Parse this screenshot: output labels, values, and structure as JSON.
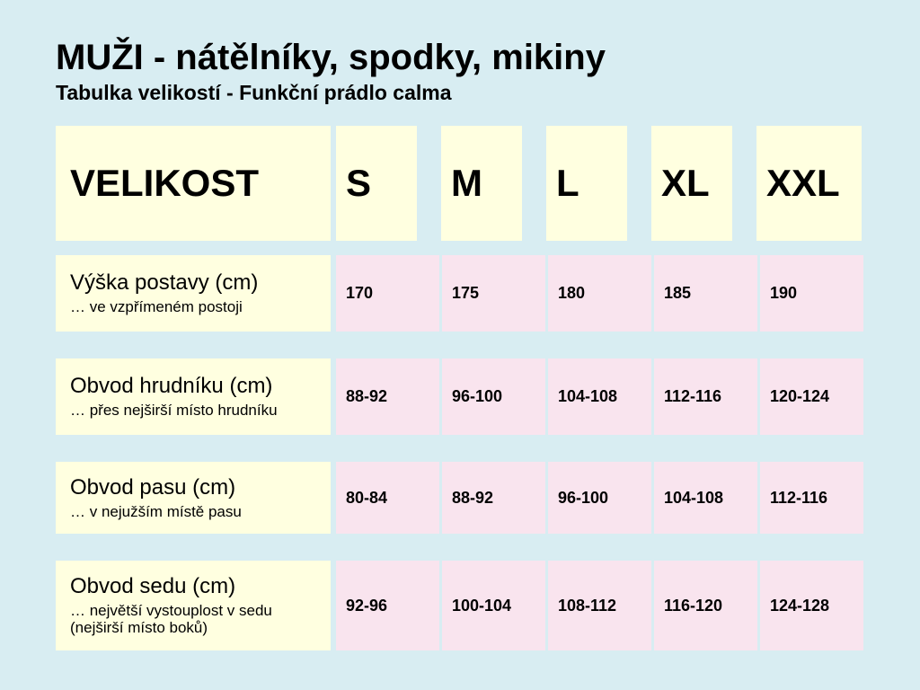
{
  "page": {
    "title": "MUŽI - nátělníky, spodky, mikiny",
    "subtitle": "Tabulka velikostí - Funkční prádlo calma"
  },
  "table": {
    "header": {
      "label": "VELIKOST",
      "sizes": [
        "S",
        "M",
        "L",
        "XL",
        "XXL"
      ]
    },
    "rows": [
      {
        "label": "Výška postavy (cm)",
        "note": "… ve vzpřímeném postoji",
        "values": [
          "170",
          "175",
          "180",
          "185",
          "190"
        ]
      },
      {
        "label": "Obvod hrudníku (cm)",
        "note": "… přes nejširší místo hrudníku",
        "values": [
          "88-92",
          "96-100",
          "104-108",
          "112-116",
          "120-124"
        ]
      },
      {
        "label": "Obvod pasu (cm)",
        "note": "… v nejužším místě pasu",
        "values": [
          "80-84",
          "88-92",
          "96-100",
          "104-108",
          "112-116"
        ]
      },
      {
        "label": "Obvod sedu (cm)",
        "note": "… největší vystouplost v sedu (nejširší místo boků)",
        "values": [
          "92-96",
          "100-104",
          "108-112",
          "116-120",
          "124-128"
        ]
      }
    ]
  },
  "chart_data": {
    "type": "table",
    "title": "MUŽI - nátělníky, spodky, mikiny",
    "subtitle": "Tabulka velikostí - Funkční prádlo calma",
    "columns": [
      "VELIKOST",
      "S",
      "M",
      "L",
      "XL",
      "XXL"
    ],
    "rows": [
      [
        "Výška postavy (cm)",
        "170",
        "175",
        "180",
        "185",
        "190"
      ],
      [
        "Obvod hrudníku (cm)",
        "88-92",
        "96-100",
        "104-108",
        "112-116",
        "120-124"
      ],
      [
        "Obvod pasu (cm)",
        "80-84",
        "88-92",
        "96-100",
        "104-108",
        "112-116"
      ],
      [
        "Obvod sedu (cm)",
        "92-96",
        "100-104",
        "108-112",
        "116-120",
        "124-128"
      ]
    ]
  },
  "colors": {
    "background": "#d8edf2",
    "label_cell": "#ffffe0",
    "value_cell": "#f9e4ee",
    "text": "#000000"
  }
}
